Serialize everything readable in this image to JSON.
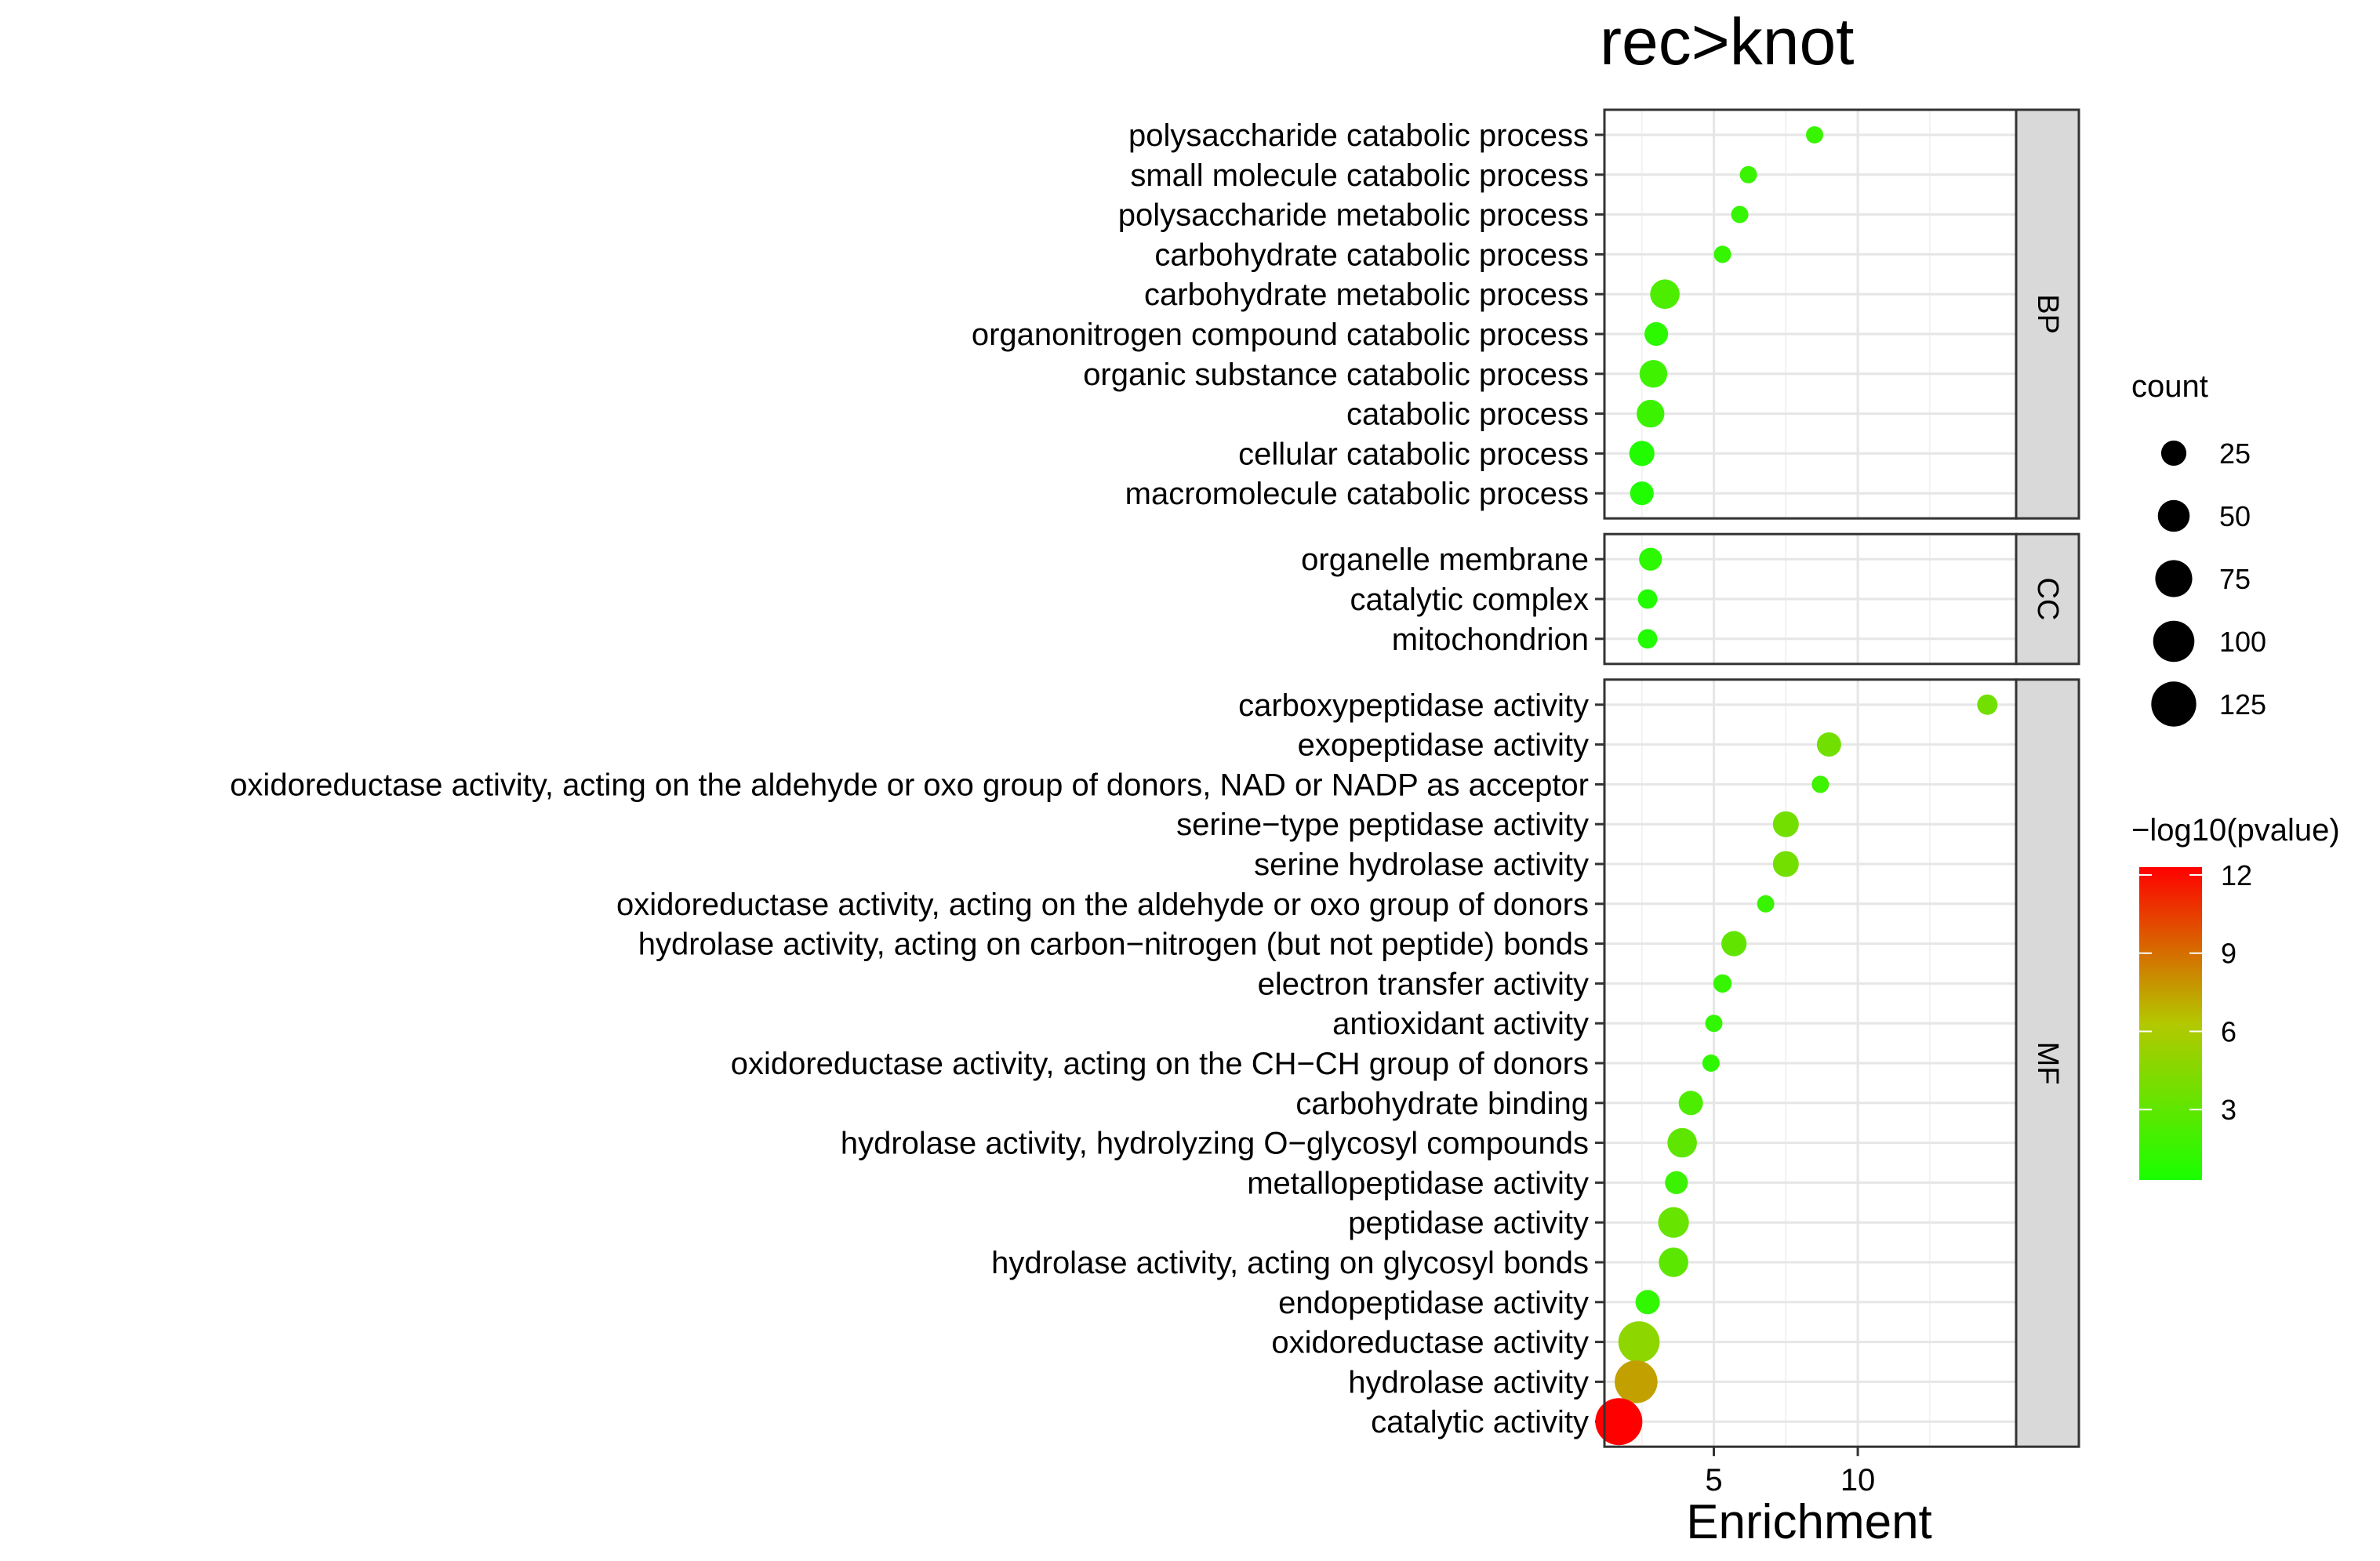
{
  "chart_data": {
    "type": "scatter",
    "title": "rec>knot",
    "xlabel": "Enrichment",
    "ylabel": "",
    "xlim": [
      1.2,
      15.5
    ],
    "x_ticks": [
      5,
      10
    ],
    "x_tick_labels": [
      "5",
      "10"
    ],
    "grid": true,
    "legend_position": "right",
    "size_legend": {
      "title": "count",
      "values": [
        25,
        50,
        75,
        100,
        125
      ],
      "labels": [
        "25",
        "50",
        "75",
        "100",
        "125"
      ],
      "color": "#000000"
    },
    "color_legend": {
      "title": "−log10(pvalue)",
      "min": 0.3,
      "max": 12.3,
      "ticks": [
        3,
        6,
        9,
        12
      ],
      "tick_labels": [
        "3",
        "6",
        "9",
        "12"
      ],
      "colors": {
        "low": "#1aff00",
        "mid": "#b3c800",
        "high": "#ff0000"
      }
    },
    "facets": [
      {
        "name": "BP",
        "terms": [
          {
            "label": "polysaccharide catabolic process",
            "enrichment": 8.5,
            "count": 6,
            "neglog10p": 1.5
          },
          {
            "label": "small molecule catabolic process",
            "enrichment": 6.2,
            "count": 6,
            "neglog10p": 1.5
          },
          {
            "label": "polysaccharide metabolic process",
            "enrichment": 5.9,
            "count": 6,
            "neglog10p": 1.4
          },
          {
            "label": "carbohydrate catabolic process",
            "enrichment": 5.3,
            "count": 6,
            "neglog10p": 1.3
          },
          {
            "label": "carbohydrate metabolic process",
            "enrichment": 3.3,
            "count": 40,
            "neglog10p": 2.3
          },
          {
            "label": "organonitrogen compound catabolic process",
            "enrichment": 3.0,
            "count": 20,
            "neglog10p": 1.0
          },
          {
            "label": "organic substance catabolic process",
            "enrichment": 2.9,
            "count": 33,
            "neglog10p": 1.7
          },
          {
            "label": "catabolic process",
            "enrichment": 2.8,
            "count": 33,
            "neglog10p": 1.6
          },
          {
            "label": "cellular catabolic process",
            "enrichment": 2.5,
            "count": 25,
            "neglog10p": 0.6
          },
          {
            "label": "macromolecule catabolic process",
            "enrichment": 2.5,
            "count": 20,
            "neglog10p": 0.5
          }
        ]
      },
      {
        "name": "CC",
        "terms": [
          {
            "label": "organelle membrane",
            "enrichment": 2.8,
            "count": 18,
            "neglog10p": 1.0
          },
          {
            "label": "catalytic complex",
            "enrichment": 2.7,
            "count": 10,
            "neglog10p": 0.6
          },
          {
            "label": "mitochondrion",
            "enrichment": 2.7,
            "count": 10,
            "neglog10p": 0.6
          }
        ]
      },
      {
        "name": "MF",
        "terms": [
          {
            "label": "carboxypeptidase activity",
            "enrichment": 14.5,
            "count": 12,
            "neglog10p": 3.7
          },
          {
            "label": "exopeptidase activity",
            "enrichment": 9.0,
            "count": 22,
            "neglog10p": 3.7
          },
          {
            "label": "oxidoreductase activity, acting on the aldehyde or oxo group of donors, NAD or NADP as acceptor",
            "enrichment": 8.7,
            "count": 6,
            "neglog10p": 1.7
          },
          {
            "label": "serine−type peptidase activity",
            "enrichment": 7.5,
            "count": 27,
            "neglog10p": 3.8
          },
          {
            "label": "serine hydrolase activity",
            "enrichment": 7.5,
            "count": 27,
            "neglog10p": 3.8
          },
          {
            "label": "oxidoreductase activity, acting on the aldehyde or oxo group of donors",
            "enrichment": 6.8,
            "count": 6,
            "neglog10p": 1.5
          },
          {
            "label": "hydrolase activity, acting on carbon−nitrogen (but not peptide) bonds",
            "enrichment": 5.7,
            "count": 25,
            "neglog10p": 3.1
          },
          {
            "label": "electron transfer activity",
            "enrichment": 5.3,
            "count": 8,
            "neglog10p": 1.4
          },
          {
            "label": "antioxidant activity",
            "enrichment": 5.0,
            "count": 6,
            "neglog10p": 1.2
          },
          {
            "label": "oxidoreductase activity, acting on the CH−CH group of donors",
            "enrichment": 4.9,
            "count": 6,
            "neglog10p": 1.1
          },
          {
            "label": "carbohydrate binding",
            "enrichment": 4.2,
            "count": 22,
            "neglog10p": 2.3
          },
          {
            "label": "hydrolase activity, hydrolyzing O−glycosyl compounds",
            "enrichment": 3.9,
            "count": 40,
            "neglog10p": 3.0
          },
          {
            "label": "metallopeptidase activity",
            "enrichment": 3.7,
            "count": 18,
            "neglog10p": 1.6
          },
          {
            "label": "peptidase activity",
            "enrichment": 3.6,
            "count": 45,
            "neglog10p": 3.3
          },
          {
            "label": "hydrolase activity, acting on glycosyl bonds",
            "enrichment": 3.6,
            "count": 40,
            "neglog10p": 2.9
          },
          {
            "label": "endopeptidase activity",
            "enrichment": 2.7,
            "count": 22,
            "neglog10p": 1.2
          },
          {
            "label": "oxidoreductase activity",
            "enrichment": 2.4,
            "count": 100,
            "neglog10p": 4.8
          },
          {
            "label": "hydrolase activity",
            "enrichment": 2.3,
            "count": 110,
            "neglog10p": 7.5
          },
          {
            "label": "catalytic activity",
            "enrichment": 1.7,
            "count": 140,
            "neglog10p": 12.3
          }
        ]
      }
    ]
  }
}
